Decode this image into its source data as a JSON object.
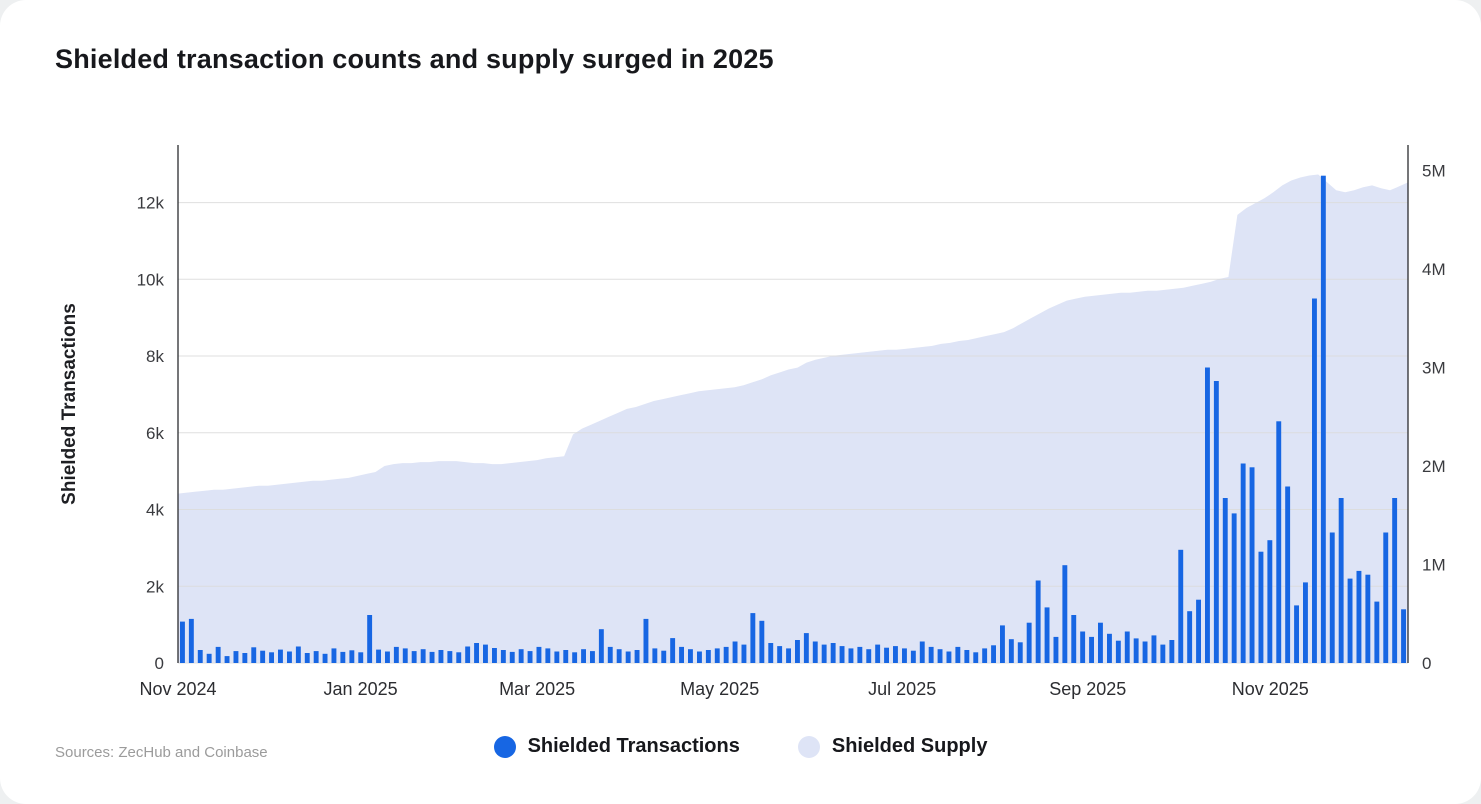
{
  "footer": {
    "source": "Sources: ZecHub and Coinbase"
  },
  "chart_data": {
    "type": "bar+area",
    "title": "Shielded transaction counts and supply surged in 2025",
    "ylabel_left": "Shielded Transactions",
    "legend_position": "bottom",
    "grid": "horizontal",
    "x_start": "2024-11-01",
    "x_step_days": 3,
    "x_ticks": [
      {
        "label": "Nov 2024",
        "date": "2024-11-01"
      },
      {
        "label": "Jan 2025",
        "date": "2025-01-01"
      },
      {
        "label": "Mar 2025",
        "date": "2025-03-01"
      },
      {
        "label": "May 2025",
        "date": "2025-05-01"
      },
      {
        "label": "Jul 2025",
        "date": "2025-07-01"
      },
      {
        "label": "Sep 2025",
        "date": "2025-09-01"
      },
      {
        "label": "Nov 2025",
        "date": "2025-11-01"
      }
    ],
    "left_axis": {
      "title": "Shielded Transactions",
      "max": 13500,
      "ticks": [
        {
          "label": "0",
          "value": 0
        },
        {
          "label": "2k",
          "value": 2000
        },
        {
          "label": "4k",
          "value": 4000
        },
        {
          "label": "6k",
          "value": 6000
        },
        {
          "label": "8k",
          "value": 8000
        },
        {
          "label": "10k",
          "value": 10000
        },
        {
          "label": "12k",
          "value": 12000
        }
      ]
    },
    "right_axis": {
      "title": "Shielded Supply",
      "units": "millions",
      "max": 5.26,
      "ticks": [
        {
          "label": "0",
          "value": 0
        },
        {
          "label": "1M",
          "value": 1
        },
        {
          "label": "2M",
          "value": 2
        },
        {
          "label": "3M",
          "value": 3
        },
        {
          "label": "4M",
          "value": 4
        },
        {
          "label": "5M",
          "value": 5
        }
      ]
    },
    "series": [
      {
        "name": "Shielded Transactions",
        "type": "bar",
        "axis": "left",
        "color": "#1766e3",
        "values": [
          1080,
          1150,
          340,
          240,
          420,
          180,
          310,
          260,
          410,
          320,
          280,
          350,
          300,
          430,
          260,
          310,
          240,
          380,
          290,
          330,
          280,
          1250,
          350,
          300,
          420,
          380,
          310,
          360,
          290,
          340,
          310,
          280,
          430,
          520,
          480,
          390,
          340,
          290,
          360,
          310,
          420,
          380,
          300,
          340,
          280,
          360,
          310,
          880,
          420,
          360,
          300,
          340,
          1150,
          380,
          320,
          650,
          420,
          360,
          300,
          340,
          380,
          420,
          560,
          480,
          1300,
          1100,
          520,
          440,
          380,
          600,
          780,
          560,
          480,
          520,
          440,
          380,
          420,
          360,
          480,
          400,
          440,
          380,
          320,
          560,
          420,
          360,
          300,
          420,
          340,
          280,
          380,
          460,
          980,
          620,
          540,
          1050,
          2150,
          1450,
          680,
          2550,
          1250,
          820,
          680,
          1050,
          760,
          580,
          820,
          640,
          560,
          720,
          480,
          600,
          2950,
          1350,
          1650,
          7700,
          7350,
          4300,
          3900,
          5200,
          5100,
          2900,
          3200,
          6300,
          4600,
          1500,
          2100,
          9500,
          12700,
          3400,
          4300,
          2200,
          2400,
          2300,
          1600,
          3400,
          4300,
          1400
        ]
      },
      {
        "name": "Shielded Supply",
        "type": "area",
        "axis": "right",
        "units": "millions",
        "color": "#dee4f6",
        "values": [
          1.72,
          1.73,
          1.74,
          1.75,
          1.76,
          1.76,
          1.77,
          1.78,
          1.79,
          1.8,
          1.8,
          1.81,
          1.82,
          1.83,
          1.84,
          1.85,
          1.85,
          1.86,
          1.87,
          1.88,
          1.9,
          1.92,
          1.94,
          2.0,
          2.02,
          2.03,
          2.03,
          2.04,
          2.04,
          2.05,
          2.05,
          2.05,
          2.04,
          2.03,
          2.03,
          2.02,
          2.02,
          2.03,
          2.04,
          2.05,
          2.06,
          2.08,
          2.09,
          2.1,
          2.32,
          2.38,
          2.42,
          2.46,
          2.5,
          2.54,
          2.58,
          2.6,
          2.63,
          2.66,
          2.68,
          2.7,
          2.72,
          2.74,
          2.76,
          2.77,
          2.78,
          2.79,
          2.8,
          2.82,
          2.85,
          2.88,
          2.92,
          2.95,
          2.98,
          3.0,
          3.05,
          3.08,
          3.1,
          3.12,
          3.13,
          3.14,
          3.15,
          3.16,
          3.17,
          3.18,
          3.18,
          3.19,
          3.2,
          3.21,
          3.22,
          3.24,
          3.25,
          3.27,
          3.28,
          3.3,
          3.32,
          3.34,
          3.36,
          3.4,
          3.45,
          3.5,
          3.55,
          3.6,
          3.64,
          3.68,
          3.7,
          3.72,
          3.73,
          3.74,
          3.75,
          3.76,
          3.76,
          3.77,
          3.78,
          3.78,
          3.79,
          3.8,
          3.81,
          3.83,
          3.85,
          3.87,
          3.9,
          3.92,
          4.55,
          4.62,
          4.67,
          4.72,
          4.78,
          4.85,
          4.9,
          4.93,
          4.95,
          4.96,
          4.88,
          4.8,
          4.78,
          4.8,
          4.83,
          4.85,
          4.82,
          4.8,
          4.84,
          4.88
        ]
      }
    ]
  }
}
